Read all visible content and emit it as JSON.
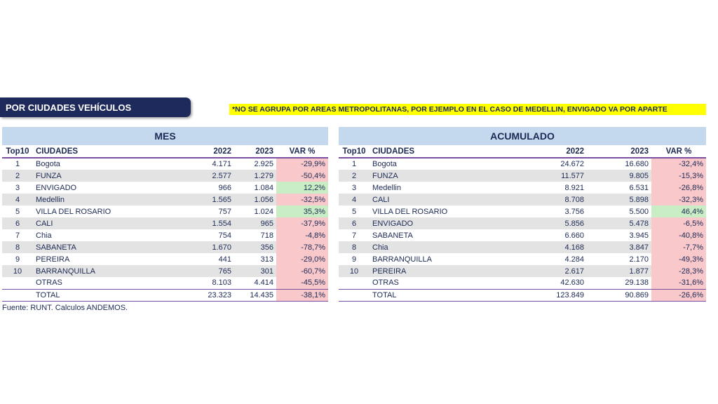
{
  "banner": "POR CIUDADES VEHÍCULOS",
  "note": "*NO SE AGRUPA POR AREAS METROPOLITANAS, POR EJEMPLO EN EL CASO DE MEDELLIN, ENVIGADO VA POR APARTE",
  "source": "Fuente: RUNT. Calculos ANDEMOS.",
  "colors": {
    "banner_bg": "#1f2a5c",
    "note_bg": "#ffff00",
    "header_bg": "#c5d9ee",
    "neg_bg": "#f8c8cb",
    "pos_bg": "#c9eec5",
    "rule": "#7a4ea0"
  },
  "mes": {
    "title": "MES",
    "columns": [
      "Top10",
      "CIUDADES",
      "2022",
      "2023",
      "VAR %"
    ],
    "rows": [
      {
        "rank": "1",
        "city": "Bogota",
        "y2022": "4.171",
        "y2023": "2.925",
        "var": "-29,9%",
        "sign": "neg"
      },
      {
        "rank": "2",
        "city": "FUNZA",
        "y2022": "2.577",
        "y2023": "1.279",
        "var": "-50,4%",
        "sign": "neg"
      },
      {
        "rank": "3",
        "city": "ENVIGADO",
        "y2022": "966",
        "y2023": "1.084",
        "var": "12,2%",
        "sign": "pos"
      },
      {
        "rank": "4",
        "city": "Medellin",
        "y2022": "1.565",
        "y2023": "1.056",
        "var": "-32,5%",
        "sign": "neg"
      },
      {
        "rank": "5",
        "city": "VILLA DEL ROSARIO",
        "y2022": "757",
        "y2023": "1.024",
        "var": "35,3%",
        "sign": "pos"
      },
      {
        "rank": "6",
        "city": "CALI",
        "y2022": "1.554",
        "y2023": "965",
        "var": "-37,9%",
        "sign": "neg"
      },
      {
        "rank": "7",
        "city": "Chia",
        "y2022": "754",
        "y2023": "718",
        "var": "-4,8%",
        "sign": "neg"
      },
      {
        "rank": "8",
        "city": "SABANETA",
        "y2022": "1.670",
        "y2023": "356",
        "var": "-78,7%",
        "sign": "neg"
      },
      {
        "rank": "9",
        "city": "PEREIRA",
        "y2022": "441",
        "y2023": "313",
        "var": "-29,0%",
        "sign": "neg"
      },
      {
        "rank": "10",
        "city": "BARRANQUILLA",
        "y2022": "765",
        "y2023": "301",
        "var": "-60,7%",
        "sign": "neg"
      },
      {
        "rank": "",
        "city": "OTRAS",
        "y2022": "8.103",
        "y2023": "4.414",
        "var": "-45,5%",
        "sign": "neg"
      }
    ],
    "total": {
      "label": "TOTAL",
      "y2022": "23.323",
      "y2023": "14.435",
      "var": "-38,1%"
    }
  },
  "acumulado": {
    "title": "ACUMULADO",
    "columns": [
      "Top10",
      "CIUDADES",
      "2022",
      "2023",
      "VAR %"
    ],
    "rows": [
      {
        "rank": "1",
        "city": "Bogota",
        "y2022": "24.672",
        "y2023": "16.680",
        "var": "-32,4%",
        "sign": "neg"
      },
      {
        "rank": "2",
        "city": "FUNZA",
        "y2022": "11.577",
        "y2023": "9.805",
        "var": "-15,3%",
        "sign": "neg"
      },
      {
        "rank": "3",
        "city": "Medellin",
        "y2022": "8.921",
        "y2023": "6.531",
        "var": "-26,8%",
        "sign": "neg"
      },
      {
        "rank": "4",
        "city": "CALI",
        "y2022": "8.708",
        "y2023": "5.898",
        "var": "-32,3%",
        "sign": "neg"
      },
      {
        "rank": "5",
        "city": "VILLA DEL ROSARIO",
        "y2022": "3.756",
        "y2023": "5.500",
        "var": "46,4%",
        "sign": "pos"
      },
      {
        "rank": "6",
        "city": "ENVIGADO",
        "y2022": "5.856",
        "y2023": "5.478",
        "var": "-6,5%",
        "sign": "neg"
      },
      {
        "rank": "7",
        "city": "SABANETA",
        "y2022": "6.660",
        "y2023": "3.945",
        "var": "-40,8%",
        "sign": "neg"
      },
      {
        "rank": "8",
        "city": "Chia",
        "y2022": "4.168",
        "y2023": "3.847",
        "var": "-7,7%",
        "sign": "neg"
      },
      {
        "rank": "9",
        "city": "BARRANQUILLA",
        "y2022": "4.284",
        "y2023": "2.170",
        "var": "-49,3%",
        "sign": "neg"
      },
      {
        "rank": "10",
        "city": "PEREIRA",
        "y2022": "2.617",
        "y2023": "1.877",
        "var": "-28,3%",
        "sign": "neg"
      },
      {
        "rank": "",
        "city": "OTRAS",
        "y2022": "42.630",
        "y2023": "29.138",
        "var": "-31,6%",
        "sign": "neg"
      }
    ],
    "total": {
      "label": "TOTAL",
      "y2022": "123.849",
      "y2023": "90.869",
      "var": "-26,6%"
    }
  }
}
